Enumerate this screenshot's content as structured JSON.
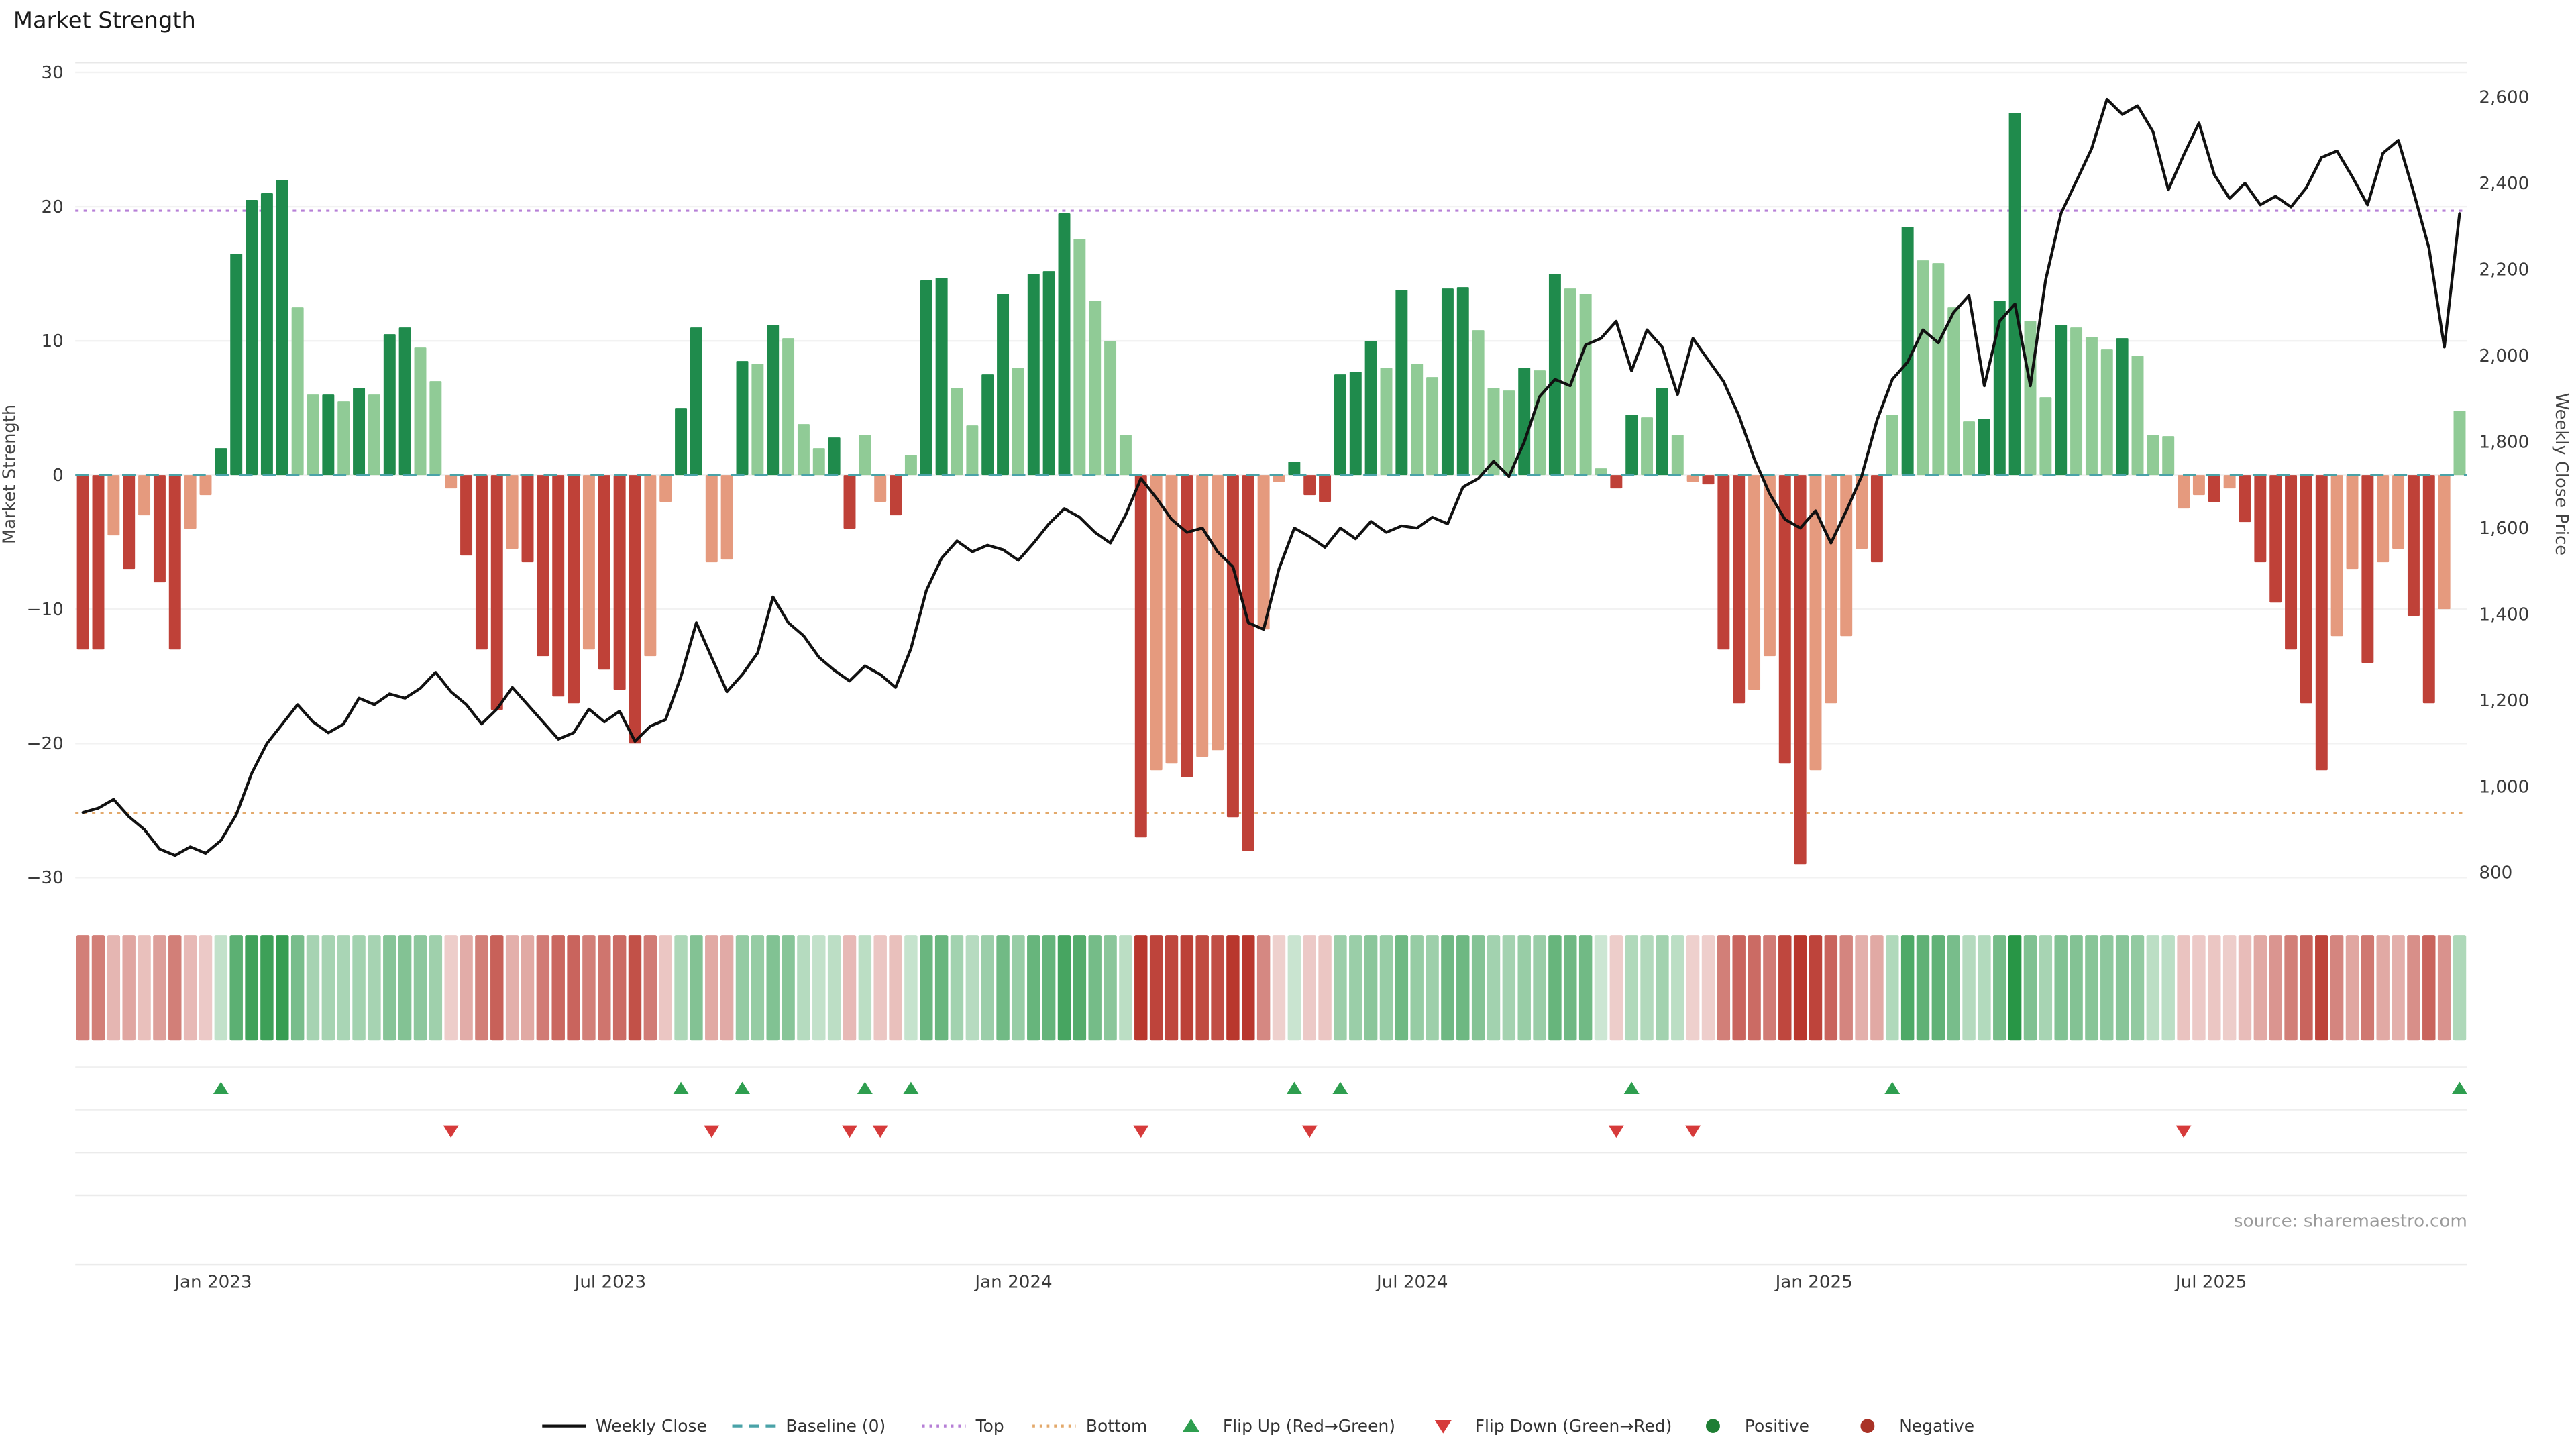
{
  "page": {
    "title": "Market Strength",
    "source": "source: sharemaestro.com"
  },
  "axes": {
    "left_title": "Market Strength",
    "right_title": "Weekly Close Price",
    "left_ticks": [
      {
        "v": 30,
        "label": "30"
      },
      {
        "v": 20,
        "label": "20"
      },
      {
        "v": 10,
        "label": "10"
      },
      {
        "v": 0,
        "label": "0"
      },
      {
        "v": -10,
        "label": "−10"
      },
      {
        "v": -20,
        "label": "−20"
      },
      {
        "v": -30,
        "label": "−30"
      }
    ],
    "right_ticks": [
      {
        "p": 2600,
        "label": "2,600"
      },
      {
        "p": 2400,
        "label": "2,400"
      },
      {
        "p": 2200,
        "label": "2,200"
      },
      {
        "p": 2000,
        "label": "2,000"
      },
      {
        "p": 1800,
        "label": "1,800"
      },
      {
        "p": 1600,
        "label": "1,600"
      },
      {
        "p": 1400,
        "label": "1,400"
      },
      {
        "p": 1200,
        "label": "1,200"
      },
      {
        "p": 1000,
        "label": "1,000"
      },
      {
        "p": 800,
        "label": "800"
      }
    ],
    "x_ticks": [
      {
        "week": 8.5,
        "label": "Jan 2023"
      },
      {
        "week": 34.4,
        "label": "Jul 2023"
      },
      {
        "week": 60.7,
        "label": "Jan 2024"
      },
      {
        "week": 86.7,
        "label": "Jul 2024"
      },
      {
        "week": 112.9,
        "label": "Jan 2025"
      },
      {
        "week": 138.8,
        "label": "Jul 2025"
      }
    ]
  },
  "chart_data": {
    "type": "bar+line",
    "title": "Market Strength",
    "weeks": 156,
    "x_unit": "week (Nov 2022 – Oct 2025, weekly)",
    "left_axis": {
      "label": "Market Strength",
      "range": [
        -30,
        30
      ]
    },
    "right_axis": {
      "label": "Weekly Close Price",
      "range": [
        800,
        2600
      ]
    },
    "reference_lines": {
      "baseline": 0,
      "top": 19.7,
      "bottom": -25.2
    },
    "series": [
      {
        "name": "Market Strength",
        "type": "bar",
        "axis": "left",
        "values": [
          -13,
          -13,
          -4.5,
          -7,
          -3,
          -8,
          -13,
          -4,
          -1.5,
          2,
          16.5,
          20.5,
          21,
          22,
          12.5,
          6,
          6,
          5.5,
          6.5,
          6,
          10.5,
          11,
          9.5,
          7,
          -1,
          -6,
          -13,
          -17.5,
          -5.5,
          -6.5,
          -13.5,
          -16.5,
          -17,
          -13,
          -14.5,
          -16,
          -20,
          -13.5,
          -2,
          5,
          11,
          -6.5,
          -6.3,
          8.5,
          8.3,
          11.2,
          10.2,
          3.8,
          2,
          2.8,
          -4,
          3,
          -2,
          -3,
          1.5,
          14.5,
          14.7,
          6.5,
          3.7,
          7.5,
          13.5,
          8,
          15,
          15.2,
          19.5,
          17.6,
          13,
          10,
          3,
          -27,
          -22,
          -21.5,
          -22.5,
          -21,
          -20.5,
          -25.5,
          -28,
          -11.5,
          -0.5,
          1,
          -1.5,
          -2,
          7.5,
          7.7,
          10,
          8,
          13.8,
          8.3,
          7.3,
          13.9,
          14,
          10.8,
          6.5,
          6.3,
          8,
          7.8,
          15,
          13.9,
          13.5,
          0.5,
          -1,
          4.5,
          4.3,
          6.5,
          3,
          -0.5,
          -0.7,
          -13,
          -17,
          -16,
          -13.5,
          -21.5,
          -29,
          -22,
          -17,
          -12,
          -5.5,
          -6.5,
          4.5,
          18.5,
          16,
          15.8,
          12.5,
          4,
          4.2,
          13,
          27,
          11.5,
          5.8,
          11.2,
          11,
          10.3,
          9.4,
          10.2,
          8.9,
          3,
          2.9,
          -2.5,
          -1.5,
          -2,
          -1,
          -3.5,
          -6.5,
          -9.5,
          -13,
          -17,
          -22,
          -12,
          -7,
          -14,
          -6.5,
          -5.5,
          -10.5,
          -17,
          -10,
          4.8
        ]
      },
      {
        "name": "Weekly Close",
        "type": "line",
        "axis": "right",
        "values": [
          940,
          950,
          970,
          930,
          900,
          855,
          840,
          860,
          845,
          875,
          935,
          1030,
          1100,
          1145,
          1190,
          1150,
          1125,
          1145,
          1205,
          1190,
          1215,
          1205,
          1228,
          1265,
          1220,
          1190,
          1145,
          1180,
          1230,
          1190,
          1150,
          1110,
          1125,
          1180,
          1150,
          1175,
          1105,
          1140,
          1155,
          1255,
          1380,
          1300,
          1220,
          1260,
          1310,
          1440,
          1380,
          1350,
          1300,
          1270,
          1245,
          1280,
          1260,
          1230,
          1320,
          1455,
          1530,
          1570,
          1545,
          1560,
          1550,
          1525,
          1565,
          1610,
          1645,
          1625,
          1590,
          1565,
          1630,
          1715,
          1670,
          1620,
          1590,
          1600,
          1545,
          1510,
          1380,
          1365,
          1505,
          1600,
          1580,
          1555,
          1600,
          1575,
          1615,
          1590,
          1605,
          1600,
          1625,
          1610,
          1695,
          1715,
          1755,
          1720,
          1800,
          1905,
          1945,
          1930,
          2025,
          2040,
          2080,
          1965,
          2060,
          2020,
          1910,
          2040,
          1990,
          1940,
          1860,
          1760,
          1680,
          1620,
          1600,
          1640,
          1565,
          1640,
          1720,
          1850,
          1945,
          1985,
          2060,
          2030,
          2100,
          2140,
          1930,
          2080,
          2120,
          1930,
          2175,
          2330,
          2405,
          2480,
          2595,
          2560,
          2580,
          2520,
          2385,
          2465,
          2540,
          2420,
          2365,
          2400,
          2350,
          2370,
          2345,
          2390,
          2460,
          2475,
          2415,
          2350,
          2470,
          2500,
          2380,
          2250,
          2020,
          2330
        ]
      }
    ],
    "flip_up_weeks": [
      9,
      39,
      43,
      51,
      54,
      79,
      82,
      101,
      118,
      155
    ],
    "flip_down_weeks": [
      24,
      41,
      50,
      52,
      69,
      80,
      100,
      105,
      137
    ],
    "heatmap": "same 156 weekly strength values rendered as color-intensity strip below main chart"
  },
  "legend": {
    "items": [
      {
        "kind": "solid-line",
        "color": "#111111",
        "label": "Weekly Close"
      },
      {
        "kind": "dashed-line",
        "color": "#4aa3a8",
        "label": "Baseline (0)"
      },
      {
        "kind": "dotted-line",
        "color": "#b67fd6",
        "label": "Top"
      },
      {
        "kind": "dotted-line",
        "color": "#e3a96b",
        "label": "Bottom"
      },
      {
        "kind": "triangle-up",
        "color": "#2e9e4f",
        "label": "Flip Up (Red→Green)"
      },
      {
        "kind": "triangle-down",
        "color": "#d63a3a",
        "label": "Flip Down (Green→Red)"
      },
      {
        "kind": "circle",
        "color": "#1e7e34",
        "label": "Positive"
      },
      {
        "kind": "circle",
        "color": "#a93226",
        "label": "Negative"
      }
    ]
  },
  "colors": {
    "positive_dark": "#1f8b4c",
    "positive_light": "#90cb96",
    "negative_dark": "#bf4138",
    "negative_light": "#e59a7e",
    "line": "#111111",
    "baseline": "#4aa3a8",
    "top": "#b67fd6",
    "bottom": "#e3a96b",
    "flip_up": "#2e9e4f",
    "flip_down": "#d63a3a",
    "grid": "#f2f2f2",
    "panel_line": "#ebebeb",
    "axis_text": "#3a3a3a"
  }
}
